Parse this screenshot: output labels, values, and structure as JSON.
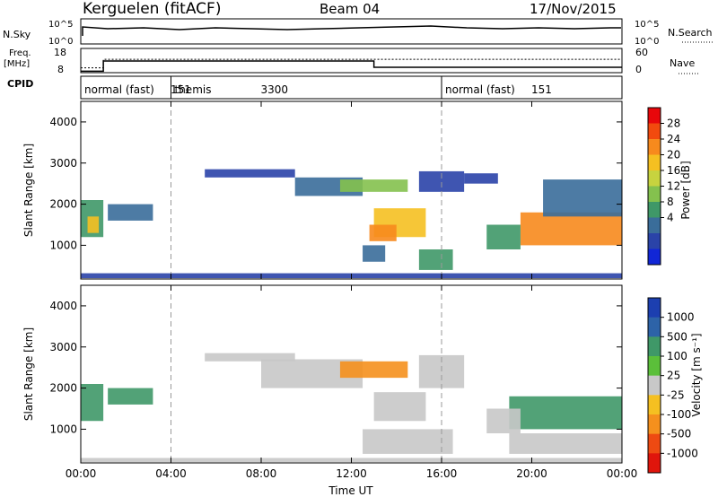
{
  "header": {
    "station": "Kerguelen (fitACF)",
    "beam": "Beam 04",
    "date": "17/Nov/2015"
  },
  "summary_panels": {
    "nsky": {
      "label": "N.Sky",
      "right_label": "N.Search",
      "ticks_left": [
        "10^5",
        "10^0"
      ],
      "ticks_right": [
        "10^5",
        "10^0"
      ]
    },
    "freq": {
      "label_line1": "Freq.",
      "label_line2": "[MHz]",
      "ticks_left": [
        "18",
        "8"
      ],
      "ticks_right": [
        "60",
        "0"
      ],
      "right_label": "Nave",
      "freq_steps": [
        [
          0,
          8.6
        ],
        [
          1.0,
          12.8
        ],
        [
          13.0,
          10.2
        ],
        [
          24.0,
          10.2
        ]
      ],
      "nave_steps": [
        [
          0,
          12
        ],
        [
          1.0,
          33
        ],
        [
          13.0,
          33
        ],
        [
          24.0,
          33
        ]
      ]
    },
    "cpid": {
      "label": "CPID",
      "segments": [
        {
          "text": "normal (fast)",
          "id": "151",
          "start_hr": 0,
          "end_hr": 4
        },
        {
          "text": "themis",
          "id": "3300",
          "start_hr": 4,
          "end_hr": 16
        },
        {
          "text": "normal (fast)",
          "id": "151",
          "start_hr": 16,
          "end_hr": 24
        }
      ]
    }
  },
  "colorbars": {
    "power": {
      "label": "Power [dB]",
      "ticks": [
        "28",
        "24",
        "20",
        "16",
        "12",
        "8",
        "4"
      ],
      "colors": [
        "#e8070b",
        "#f24a0e",
        "#f78a1d",
        "#f5c021",
        "#c7d33f",
        "#84c14e",
        "#3f9868",
        "#3a6d9a",
        "#2a43a8",
        "#1126d6"
      ]
    },
    "velocity": {
      "label": "Velocity [m s⁻¹]",
      "ticks": [
        "1000",
        "500",
        "100",
        "25",
        "-25",
        "-100",
        "-500",
        "-1000"
      ],
      "colors": [
        "#1c3fb0",
        "#2d63a8",
        "#3f9868",
        "#5bbf3a",
        "#c8c8c8",
        "#f5c021",
        "#f5901d",
        "#ee4a12",
        "#e0150c"
      ]
    }
  },
  "chart_data": [
    {
      "type": "heatmap",
      "title": "",
      "quantity": "Power",
      "xlabel": "",
      "ylabel": "Slant Range [km]",
      "xlim": [
        0,
        24
      ],
      "ylim": [
        180,
        4500
      ],
      "yticks": [
        "1000",
        "2000",
        "3000",
        "4000"
      ],
      "vertical_markers_hr": [
        4,
        16
      ],
      "regions": [
        {
          "t0": 0.0,
          "t1": 1.0,
          "r0": 1200,
          "r1": 2100,
          "value": 12
        },
        {
          "t0": 0.3,
          "t1": 0.8,
          "r0": 1300,
          "r1": 1700,
          "value": 20
        },
        {
          "t0": 1.2,
          "t1": 3.2,
          "r0": 1600,
          "r1": 2000,
          "value": 10
        },
        {
          "t0": 5.5,
          "t1": 9.5,
          "r0": 2650,
          "r1": 2850,
          "value": 6
        },
        {
          "t0": 9.5,
          "t1": 12.5,
          "r0": 2200,
          "r1": 2650,
          "value": 9
        },
        {
          "t0": 11.5,
          "t1": 14.5,
          "r0": 2300,
          "r1": 2600,
          "value": 14
        },
        {
          "t0": 13.0,
          "t1": 15.3,
          "r0": 1200,
          "r1": 1900,
          "value": 20
        },
        {
          "t0": 12.8,
          "t1": 14.0,
          "r0": 1100,
          "r1": 1500,
          "value": 24
        },
        {
          "t0": 15.0,
          "t1": 17.0,
          "r0": 2300,
          "r1": 2800,
          "value": 7
        },
        {
          "t0": 17.0,
          "t1": 18.5,
          "r0": 2500,
          "r1": 2750,
          "value": 6
        },
        {
          "t0": 15.0,
          "t1": 16.5,
          "r0": 400,
          "r1": 900,
          "value": 13
        },
        {
          "t0": 12.5,
          "t1": 13.5,
          "r0": 600,
          "r1": 1000,
          "value": 9
        },
        {
          "t0": 19.5,
          "t1": 24.0,
          "r0": 1000,
          "r1": 1800,
          "value": 24
        },
        {
          "t0": 18.0,
          "t1": 19.5,
          "r0": 900,
          "r1": 1500,
          "value": 12
        },
        {
          "t0": 20.5,
          "t1": 24.0,
          "r0": 1700,
          "r1": 2600,
          "value": 8
        },
        {
          "t0": 0.0,
          "t1": 24.0,
          "r0": 200,
          "r1": 320,
          "value": 6
        }
      ]
    },
    {
      "type": "heatmap",
      "title": "",
      "quantity": "Velocity",
      "xlabel": "Time UT",
      "ylabel": "Slant Range [km]",
      "xlim": [
        0,
        24
      ],
      "ylim": [
        180,
        4500
      ],
      "xticks": [
        "00:00",
        "04:00",
        "08:00",
        "12:00",
        "16:00",
        "20:00",
        "00:00"
      ],
      "yticks": [
        "1000",
        "2000",
        "3000",
        "4000"
      ],
      "vertical_markers_hr": [
        4,
        16
      ],
      "regions": [
        {
          "t0": 0.0,
          "t1": 1.0,
          "r0": 1200,
          "r1": 2100,
          "value": 150
        },
        {
          "t0": 1.2,
          "t1": 3.2,
          "r0": 1600,
          "r1": 2000,
          "value": 150
        },
        {
          "t0": 5.5,
          "t1": 9.5,
          "r0": 2650,
          "r1": 2850,
          "value": 0
        },
        {
          "t0": 8.0,
          "t1": 12.5,
          "r0": 2000,
          "r1": 2700,
          "value": 0
        },
        {
          "t0": 11.5,
          "t1": 14.5,
          "r0": 2250,
          "r1": 2650,
          "value": -200
        },
        {
          "t0": 13.0,
          "t1": 15.3,
          "r0": 1200,
          "r1": 1900,
          "value": 0
        },
        {
          "t0": 15.0,
          "t1": 17.0,
          "r0": 2000,
          "r1": 2800,
          "value": 0
        },
        {
          "t0": 12.5,
          "t1": 16.5,
          "r0": 400,
          "r1": 1000,
          "value": 0
        },
        {
          "t0": 19.0,
          "t1": 24.0,
          "r0": 1000,
          "r1": 1800,
          "value": 150
        },
        {
          "t0": 18.0,
          "t1": 19.5,
          "r0": 900,
          "r1": 1500,
          "value": 0
        },
        {
          "t0": 19.0,
          "t1": 24.0,
          "r0": 400,
          "r1": 900,
          "value": 0
        },
        {
          "t0": 0.0,
          "t1": 24.0,
          "r0": 200,
          "r1": 300,
          "value": 0
        }
      ]
    }
  ]
}
